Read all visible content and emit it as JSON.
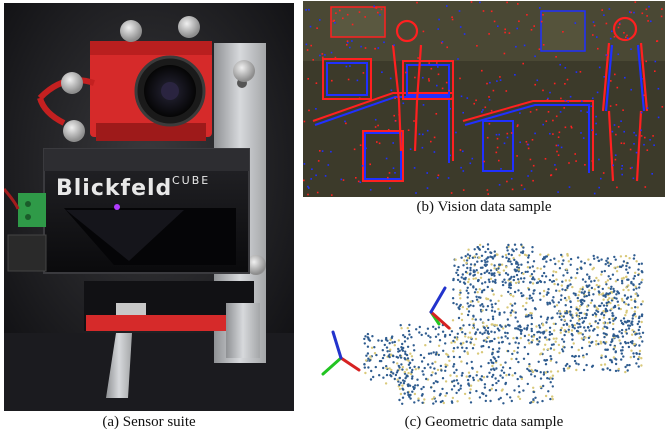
{
  "figure": {
    "panels": [
      {
        "id": "a",
        "caption": "(a)  Sensor suite",
        "logo_text": "Blickfeld CUBE",
        "description_icon": "sensor-photo"
      },
      {
        "id": "b",
        "caption": "(b)  Vision  data  sample",
        "description_icon": "event-camera-image"
      },
      {
        "id": "c",
        "caption": "(c)  Geometric  data  sample",
        "description_icon": "point-cloud"
      }
    ]
  },
  "colors": {
    "sensor_red": "#d62a2a",
    "marker_gray": "#c8c8c8",
    "event_red": "#ff2020",
    "event_blue": "#2030ff",
    "event_bg": "#3c3a2a",
    "cloud_blue": "#2f5c8f",
    "cloud_yellow": "#d9c97a",
    "axis_x": "#d62222",
    "axis_y": "#22c422",
    "axis_z": "#2233cc"
  }
}
